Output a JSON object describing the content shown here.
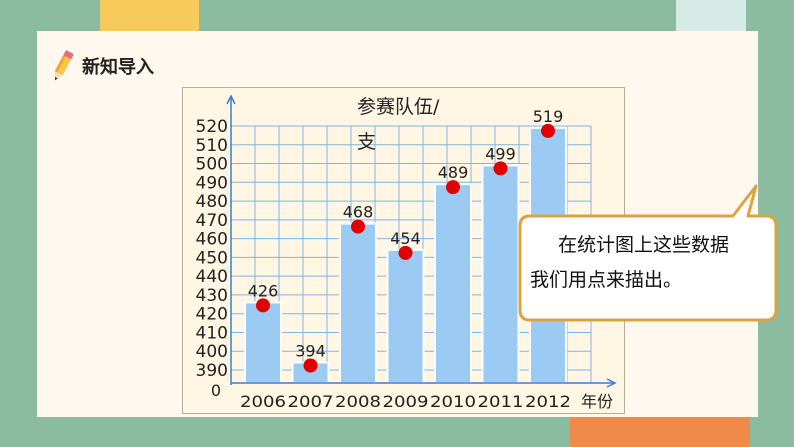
{
  "lesson": {
    "heading": "新知导入"
  },
  "chart_data": {
    "type": "bar",
    "categories": [
      "2006",
      "2007",
      "2008",
      "2009",
      "2010",
      "2011",
      "2012"
    ],
    "values": [
      426,
      394,
      468,
      454,
      489,
      499,
      519
    ],
    "ylabel_line1": "参赛队伍/",
    "ylabel_line2": "支",
    "xlabel": "年份",
    "origin_label": "0",
    "ylim": [
      390,
      520
    ],
    "yticks": [
      "390",
      "400",
      "410",
      "420",
      "430",
      "440",
      "450",
      "460",
      "470",
      "480",
      "490",
      "500",
      "510",
      "520"
    ],
    "grid": true,
    "bar_color": "#9bcbf2",
    "point_color": "#e00000"
  },
  "bubble": {
    "line1": "在统计图上这些数据",
    "line2": "我们用点来描出。"
  }
}
